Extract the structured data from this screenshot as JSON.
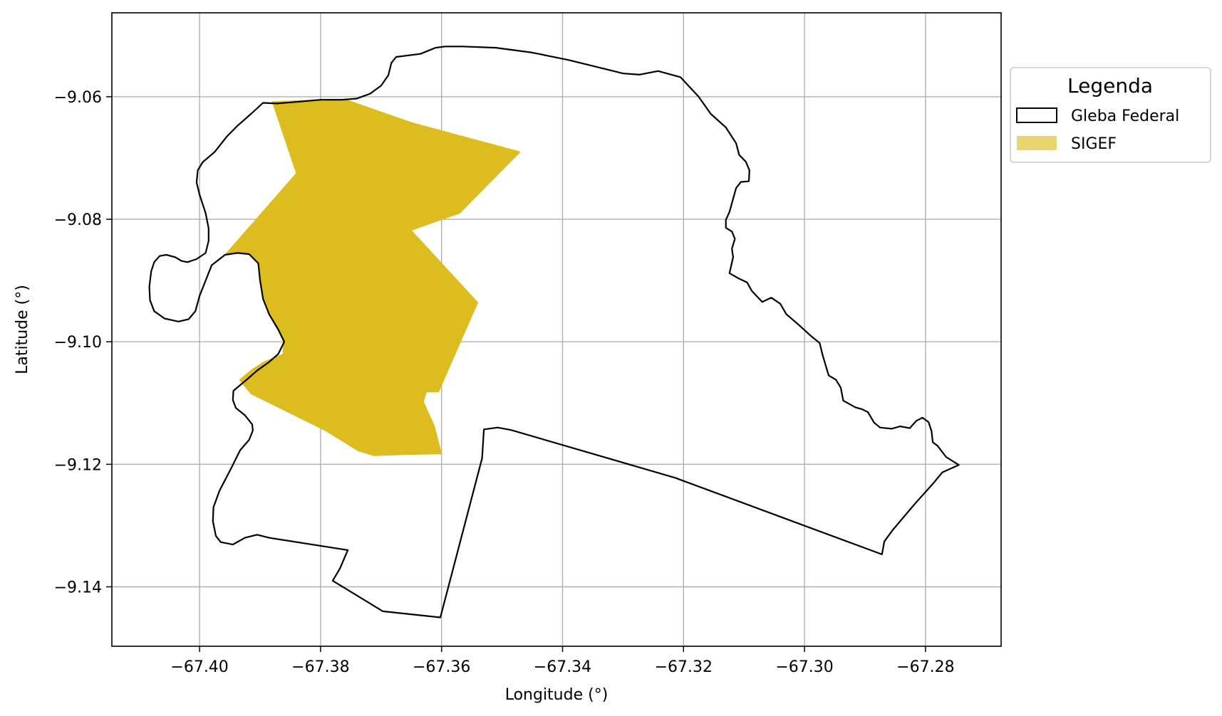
{
  "chart_data": {
    "type": "map",
    "xlabel": "Longitude (°)",
    "ylabel": "Latitude (°)",
    "xlim": [
      -67.4145,
      -67.2675
    ],
    "ylim": [
      -9.1497,
      -9.0463
    ],
    "x_ticks": [
      -67.4,
      -67.38,
      -67.36,
      -67.34,
      -67.32,
      -67.3,
      -67.28
    ],
    "x_tick_labels": [
      "−67.40",
      "−67.38",
      "−67.36",
      "−67.34",
      "−67.32",
      "−67.30",
      "−67.28"
    ],
    "y_ticks": [
      -9.06,
      -9.08,
      -9.1,
      -9.12,
      -9.14
    ],
    "y_tick_labels": [
      "−9.06",
      "−9.08",
      "−9.10",
      "−9.12",
      "−9.14"
    ],
    "grid": true,
    "legend": {
      "title": "Legenda",
      "placement": "outside-right-top",
      "entries": [
        {
          "label": "Gleba Federal",
          "style": "outline",
          "stroke": "#000000",
          "fill": "#ffffff"
        },
        {
          "label": "SIGEF",
          "style": "fill",
          "fill": "#e8d470"
        }
      ]
    },
    "colors": {
      "gleba_outline": "#000000",
      "sigef_fill": "#dcbc1f",
      "grid": "#b0b0b0"
    },
    "series": [
      {
        "name": "Gleba Federal",
        "kind": "polygon-outline",
        "coords": [
          [
            -67.3594,
            -9.0518
          ],
          [
            -67.3565,
            -9.0518
          ],
          [
            -67.351,
            -9.052
          ],
          [
            -67.345,
            -9.0528
          ],
          [
            -67.339,
            -9.054
          ],
          [
            -67.332,
            -9.0557
          ],
          [
            -67.33,
            -9.0562
          ],
          [
            -67.3273,
            -9.0564
          ],
          [
            -67.3242,
            -9.0558
          ],
          [
            -67.3205,
            -9.0568
          ],
          [
            -67.3175,
            -9.06
          ],
          [
            -67.3155,
            -9.0628
          ],
          [
            -67.313,
            -9.065
          ],
          [
            -67.3113,
            -9.0676
          ],
          [
            -67.3108,
            -9.0695
          ],
          [
            -67.3097,
            -9.0706
          ],
          [
            -67.3091,
            -9.072
          ],
          [
            -67.3092,
            -9.0738
          ],
          [
            -67.3105,
            -9.0739
          ],
          [
            -67.3113,
            -9.0749
          ],
          [
            -67.3119,
            -9.077
          ],
          [
            -67.3124,
            -9.0788
          ],
          [
            -67.313,
            -9.0801
          ],
          [
            -67.313,
            -9.0814
          ],
          [
            -67.312,
            -9.082
          ],
          [
            -67.3115,
            -9.0832
          ],
          [
            -67.312,
            -9.0848
          ],
          [
            -67.3118,
            -9.0862
          ],
          [
            -67.3124,
            -9.0888
          ],
          [
            -67.311,
            -9.0896
          ],
          [
            -67.3095,
            -9.0903
          ],
          [
            -67.3087,
            -9.0917
          ],
          [
            -67.307,
            -9.0935
          ],
          [
            -67.3055,
            -9.0928
          ],
          [
            -67.304,
            -9.0938
          ],
          [
            -67.303,
            -9.0955
          ],
          [
            -67.301,
            -9.0972
          ],
          [
            -67.299,
            -9.099
          ],
          [
            -67.2975,
            -9.1002
          ],
          [
            -67.297,
            -9.1022
          ],
          [
            -67.296,
            -9.1055
          ],
          [
            -67.2948,
            -9.1062
          ],
          [
            -67.294,
            -9.1075
          ],
          [
            -67.2936,
            -9.1096
          ],
          [
            -67.2916,
            -9.1107
          ],
          [
            -67.2905,
            -9.111
          ],
          [
            -67.2895,
            -9.1115
          ],
          [
            -67.2885,
            -9.1132
          ],
          [
            -67.2875,
            -9.114
          ],
          [
            -67.2856,
            -9.1142
          ],
          [
            -67.2842,
            -9.1138
          ],
          [
            -67.2826,
            -9.1141
          ],
          [
            -67.2815,
            -9.1129
          ],
          [
            -67.2805,
            -9.1124
          ],
          [
            -67.2795,
            -9.1131
          ],
          [
            -67.279,
            -9.1146
          ],
          [
            -67.2788,
            -9.1164
          ],
          [
            -67.278,
            -9.117
          ],
          [
            -67.2766,
            -9.1188
          ],
          [
            -67.2745,
            -9.1201
          ],
          [
            -67.2772,
            -9.1213
          ],
          [
            -67.2788,
            -9.1232
          ],
          [
            -67.2818,
            -9.1265
          ],
          [
            -67.2854,
            -9.1307
          ],
          [
            -67.2868,
            -9.1326
          ],
          [
            -67.2872,
            -9.1347
          ],
          [
            -67.3214,
            -9.1222
          ],
          [
            -67.3485,
            -9.1144
          ],
          [
            -67.3507,
            -9.114
          ],
          [
            -67.353,
            -9.1143
          ],
          [
            -67.3533,
            -9.119
          ],
          [
            -67.3602,
            -9.145
          ],
          [
            -67.3697,
            -9.144
          ],
          [
            -67.378,
            -9.139
          ],
          [
            -67.3768,
            -9.137
          ],
          [
            -67.3755,
            -9.134
          ],
          [
            -67.3885,
            -9.132
          ],
          [
            -67.3905,
            -9.1315
          ],
          [
            -67.3925,
            -9.132
          ],
          [
            -67.3945,
            -9.1331
          ],
          [
            -67.3965,
            -9.1327
          ],
          [
            -67.3973,
            -9.1317
          ],
          [
            -67.3978,
            -9.1293
          ],
          [
            -67.3977,
            -9.127
          ],
          [
            -67.3967,
            -9.1243
          ],
          [
            -67.3948,
            -9.1207
          ],
          [
            -67.3933,
            -9.1177
          ],
          [
            -67.3918,
            -9.116
          ],
          [
            -67.3912,
            -9.1145
          ],
          [
            -67.3913,
            -9.1135
          ],
          [
            -67.3925,
            -9.112
          ],
          [
            -67.394,
            -9.1108
          ],
          [
            -67.3945,
            -9.1095
          ],
          [
            -67.3944,
            -9.108
          ],
          [
            -67.392,
            -9.106
          ],
          [
            -67.3905,
            -9.1047
          ],
          [
            -67.3885,
            -9.1033
          ],
          [
            -67.387,
            -9.102
          ],
          [
            -67.386,
            -9.1
          ],
          [
            -67.387,
            -9.098
          ],
          [
            -67.3885,
            -9.0955
          ],
          [
            -67.3895,
            -9.093
          ],
          [
            -67.39,
            -9.09
          ],
          [
            -67.3903,
            -9.0872
          ],
          [
            -67.3918,
            -9.0857
          ],
          [
            -67.3937,
            -9.0855
          ],
          [
            -67.3958,
            -9.0858
          ],
          [
            -67.398,
            -9.0875
          ],
          [
            -67.399,
            -9.09
          ],
          [
            -67.4,
            -9.0925
          ],
          [
            -67.4007,
            -9.095
          ],
          [
            -67.4018,
            -9.0963
          ],
          [
            -67.4035,
            -9.0967
          ],
          [
            -67.4058,
            -9.0962
          ],
          [
            -67.4075,
            -9.095
          ],
          [
            -67.4082,
            -9.0932
          ],
          [
            -67.4083,
            -9.091
          ],
          [
            -67.408,
            -9.0885
          ],
          [
            -67.4075,
            -9.087
          ],
          [
            -67.4066,
            -9.086
          ],
          [
            -67.4055,
            -9.0858
          ],
          [
            -67.404,
            -9.0862
          ],
          [
            -67.403,
            -9.0868
          ],
          [
            -67.402,
            -9.087
          ],
          [
            -67.4005,
            -9.0865
          ],
          [
            -67.399,
            -9.0855
          ],
          [
            -67.3985,
            -9.0835
          ],
          [
            -67.3985,
            -9.0815
          ],
          [
            -67.399,
            -9.079
          ],
          [
            -67.4,
            -9.076
          ],
          [
            -67.4005,
            -9.074
          ],
          [
            -67.4003,
            -9.072
          ],
          [
            -67.3995,
            -9.0707
          ],
          [
            -67.3975,
            -9.069
          ],
          [
            -67.3955,
            -9.0665
          ],
          [
            -67.3937,
            -9.0647
          ],
          [
            -67.3915,
            -9.0628
          ],
          [
            -67.3895,
            -9.061
          ],
          [
            -67.3872,
            -9.0611
          ],
          [
            -67.3835,
            -9.0608
          ],
          [
            -67.38,
            -9.0605
          ],
          [
            -67.3765,
            -9.0605
          ],
          [
            -67.374,
            -9.0603
          ],
          [
            -67.3718,
            -9.0595
          ],
          [
            -67.37,
            -9.0582
          ],
          [
            -67.3688,
            -9.0565
          ],
          [
            -67.3683,
            -9.0545
          ],
          [
            -67.3675,
            -9.0535
          ],
          [
            -67.3635,
            -9.053
          ],
          [
            -67.361,
            -9.052
          ],
          [
            -67.3594,
            -9.0518
          ]
        ]
      },
      {
        "name": "SIGEF",
        "kind": "polygon-fill",
        "coords": [
          [
            -67.388,
            -9.0608
          ],
          [
            -67.376,
            -9.0604
          ],
          [
            -67.365,
            -9.0642
          ],
          [
            -67.347,
            -9.069
          ],
          [
            -67.357,
            -9.079
          ],
          [
            -67.365,
            -9.0818
          ],
          [
            -67.354,
            -9.0936
          ],
          [
            -67.3605,
            -9.1082
          ],
          [
            -67.3625,
            -9.1082
          ],
          [
            -67.363,
            -9.1098
          ],
          [
            -67.3612,
            -9.1137
          ],
          [
            -67.36,
            -9.1183
          ],
          [
            -67.3658,
            -9.1184
          ],
          [
            -67.3712,
            -9.1186
          ],
          [
            -67.3738,
            -9.1178
          ],
          [
            -67.3792,
            -9.1145
          ],
          [
            -67.3915,
            -9.1085
          ],
          [
            -67.3934,
            -9.1062
          ],
          [
            -67.3913,
            -9.1045
          ],
          [
            -67.3894,
            -9.1033
          ],
          [
            -67.3862,
            -9.102
          ],
          [
            -67.3862,
            -9.1
          ],
          [
            -67.387,
            -9.098
          ],
          [
            -67.3885,
            -9.0955
          ],
          [
            -67.3895,
            -9.093
          ],
          [
            -67.39,
            -9.09
          ],
          [
            -67.3903,
            -9.0872
          ],
          [
            -67.3918,
            -9.0857
          ],
          [
            -67.3937,
            -9.0855
          ],
          [
            -67.3958,
            -9.0858
          ],
          [
            -67.384,
            -9.0725
          ]
        ]
      }
    ]
  }
}
